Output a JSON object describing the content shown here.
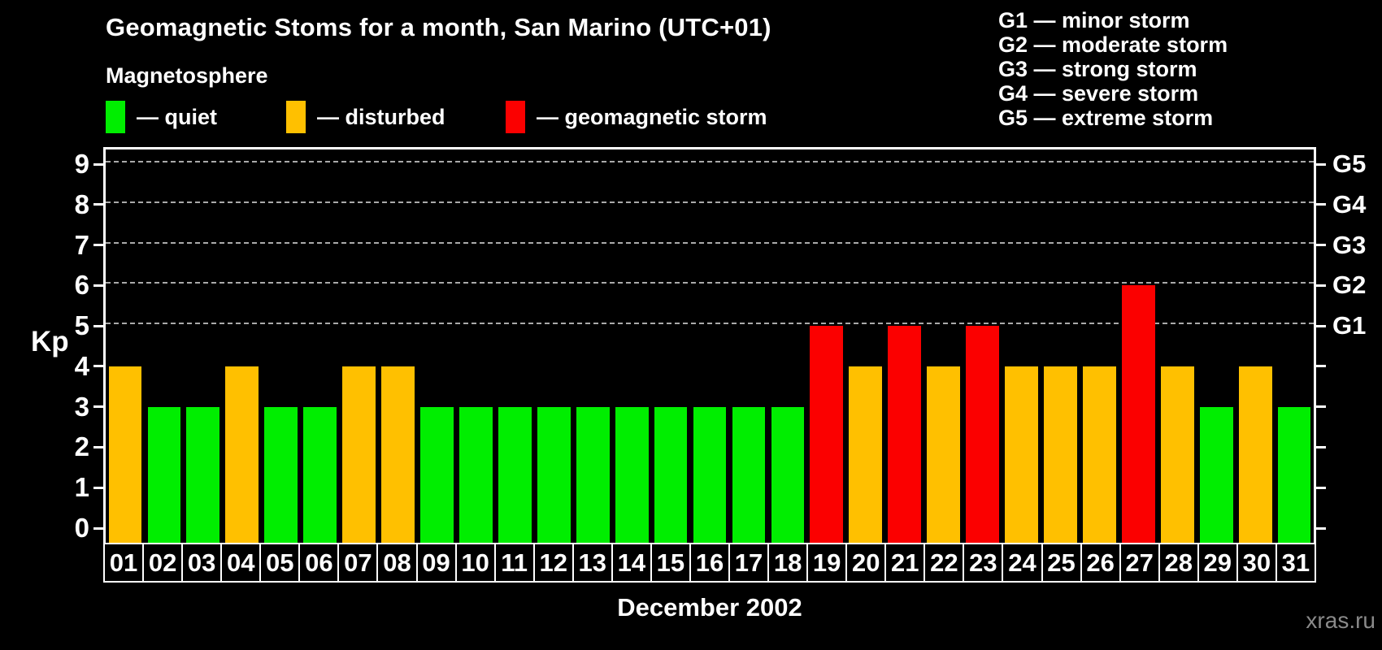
{
  "title": "Geomagnetic Stoms for a month, San Marino (UTC+01)",
  "legend": {
    "heading": "Magnetosphere",
    "items": [
      {
        "key": "quiet",
        "label": "— quiet",
        "color": "#00ee00",
        "x": 130
      },
      {
        "key": "disturbed",
        "label": "— disturbed",
        "color": "#ffc000",
        "x": 352
      },
      {
        "key": "storm",
        "label": "— geomagnetic storm",
        "color": "#fb0000",
        "x": 622
      }
    ]
  },
  "g_scale_legend": [
    "G1 — minor storm",
    "G2 — moderate storm",
    "G3 — strong storm",
    "G4 — severe storm",
    "G5 — extreme storm"
  ],
  "watermark": "xras.ru",
  "chart_data": {
    "type": "bar",
    "title": "Geomagnetic Stoms for a month, San Marino (UTC+01)",
    "xlabel": "December 2002",
    "ylabel": "Kp",
    "ylim": [
      0,
      9
    ],
    "y_ticks": [
      0,
      1,
      2,
      3,
      4,
      5,
      6,
      7,
      8,
      9
    ],
    "gridlines": [
      5,
      6,
      7,
      8,
      9
    ],
    "grid": "dashed horizontal at storm levels only",
    "legend_position": "top",
    "right_axis_labels": [
      {
        "value": 5,
        "label": "G1"
      },
      {
        "value": 6,
        "label": "G2"
      },
      {
        "value": 7,
        "label": "G3"
      },
      {
        "value": 8,
        "label": "G4"
      },
      {
        "value": 9,
        "label": "G5"
      }
    ],
    "categories": [
      "01",
      "02",
      "03",
      "04",
      "05",
      "06",
      "07",
      "08",
      "09",
      "10",
      "11",
      "12",
      "13",
      "14",
      "15",
      "16",
      "17",
      "18",
      "19",
      "20",
      "21",
      "22",
      "23",
      "24",
      "25",
      "26",
      "27",
      "28",
      "29",
      "30",
      "31"
    ],
    "values": [
      4,
      3,
      3,
      4,
      3,
      3,
      4,
      4,
      3,
      3,
      3,
      3,
      3,
      3,
      3,
      3,
      3,
      3,
      5,
      4,
      5,
      4,
      5,
      4,
      4,
      4,
      6,
      4,
      3,
      4,
      3
    ],
    "statuses": [
      "disturbed",
      "quiet",
      "quiet",
      "disturbed",
      "quiet",
      "quiet",
      "disturbed",
      "disturbed",
      "quiet",
      "quiet",
      "quiet",
      "quiet",
      "quiet",
      "quiet",
      "quiet",
      "quiet",
      "quiet",
      "quiet",
      "storm",
      "disturbed",
      "storm",
      "disturbed",
      "storm",
      "disturbed",
      "disturbed",
      "disturbed",
      "storm",
      "disturbed",
      "quiet",
      "disturbed",
      "quiet"
    ],
    "colors": {
      "quiet": "#00ee00",
      "disturbed": "#ffc000",
      "storm": "#fb0000"
    }
  }
}
